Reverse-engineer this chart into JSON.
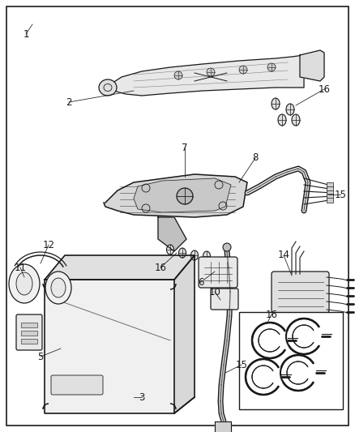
{
  "bg_color": "#ffffff",
  "border_color": "#1a1a1a",
  "line_color": "#1a1a1a",
  "label_color": "#1a1a1a",
  "fig_width": 4.38,
  "fig_height": 5.33,
  "dpi": 100
}
